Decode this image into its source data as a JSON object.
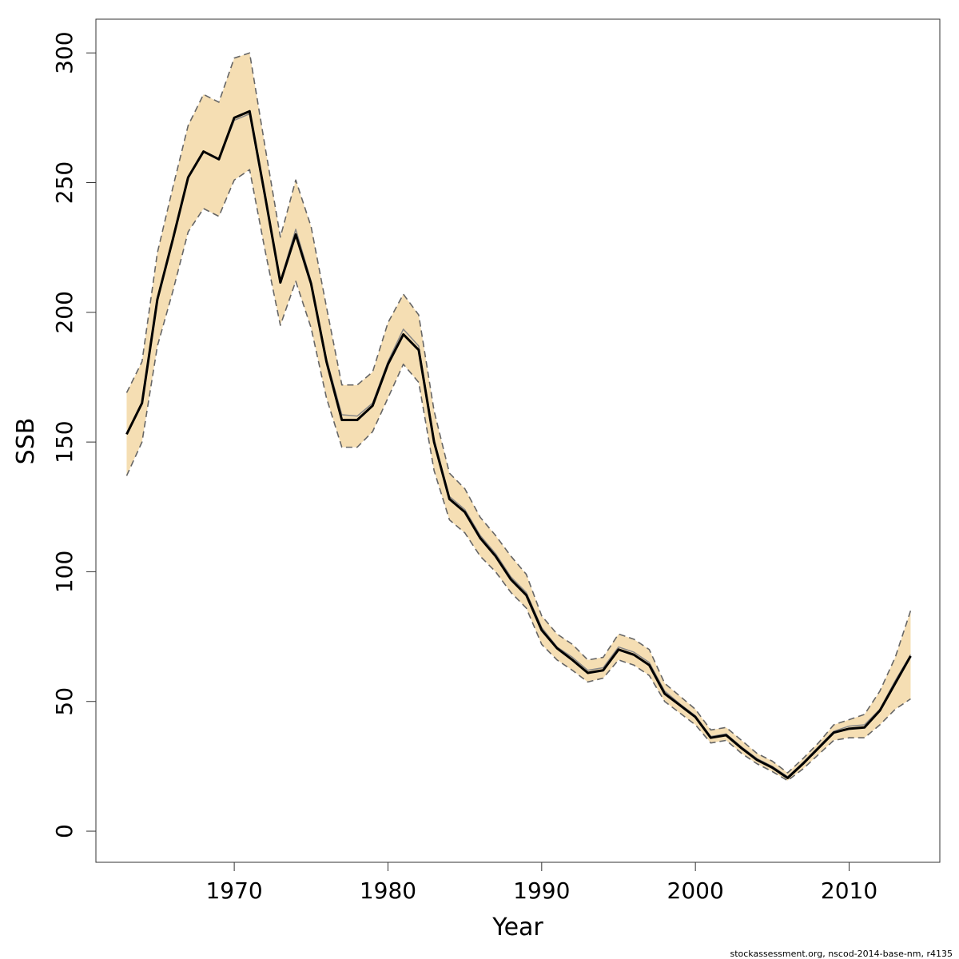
{
  "chart_data": {
    "type": "area",
    "xlabel": "Year",
    "ylabel": "SSB",
    "xlim": [
      1961.0,
      2015.9
    ],
    "ylim": [
      -12,
      313
    ],
    "x_ticks": [
      1970,
      1980,
      1990,
      2000,
      2010
    ],
    "y_ticks": [
      0,
      50,
      100,
      150,
      200,
      250,
      300
    ],
    "grid": false,
    "legend": "none",
    "x": [
      1963,
      1964,
      1965,
      1966,
      1967,
      1968,
      1969,
      1970,
      1971,
      1972,
      1973,
      1974,
      1975,
      1976,
      1977,
      1978,
      1979,
      1980,
      1981,
      1982,
      1983,
      1984,
      1985,
      1986,
      1987,
      1988,
      1989,
      1990,
      1991,
      1992,
      1993,
      1994,
      1995,
      1996,
      1997,
      1998,
      1999,
      2000,
      2001,
      2002,
      2003,
      2004,
      2005,
      2006,
      2007,
      2008,
      2009,
      2010,
      2011,
      2012,
      2013,
      2014
    ],
    "series": [
      {
        "role": "estimate",
        "values": [
          153,
          165,
          205,
          228,
          252,
          262,
          259,
          275,
          277.5,
          245,
          211.5,
          230,
          211,
          181,
          158.5,
          158.5,
          164,
          180,
          191.5,
          185.5,
          150,
          128,
          123,
          113,
          106,
          97,
          91,
          77.5,
          70.5,
          66,
          61,
          62,
          70,
          68,
          64,
          53,
          48.5,
          44,
          36,
          37,
          32,
          27.5,
          24.5,
          20.5,
          26,
          32,
          38,
          39.5,
          40,
          46.5,
          57,
          67.5
        ]
      },
      {
        "role": "upper-bound",
        "values": [
          169,
          181,
          223,
          248,
          272,
          284,
          281,
          298,
          300,
          264,
          229,
          251,
          233,
          202,
          172,
          172,
          177,
          196,
          207,
          199,
          162,
          138,
          132,
          121,
          114,
          106,
          99,
          83,
          76,
          72,
          66,
          67,
          76,
          74,
          70,
          57,
          52,
          47,
          39,
          40,
          35,
          30,
          27,
          22.5,
          28,
          34,
          41,
          43,
          45,
          54,
          67,
          85
        ]
      },
      {
        "role": "lower-bound",
        "values": [
          137,
          150,
          187,
          208,
          231,
          240,
          237,
          251,
          255,
          224,
          195,
          212,
          194,
          167,
          148,
          148,
          154,
          167,
          180,
          173,
          139,
          120,
          115,
          106,
          100,
          92,
          86,
          72,
          66,
          62,
          57.5,
          59,
          66,
          64,
          60,
          50,
          45.5,
          41,
          34,
          35,
          30,
          26,
          23,
          19.5,
          24,
          29.5,
          35,
          36,
          36,
          41,
          47,
          51
        ]
      },
      {
        "role": "alternate-estimate",
        "values": [
          153,
          165,
          205,
          228,
          252,
          262,
          259,
          274,
          276.5,
          244,
          212,
          232,
          212,
          182,
          160.5,
          160,
          165,
          181,
          193.5,
          187,
          151,
          129,
          124,
          114,
          107,
          98,
          92,
          78.5,
          71,
          67,
          62,
          63,
          71,
          69,
          65,
          54,
          49,
          44.5,
          36.5,
          37.5,
          32.5,
          28,
          25,
          21,
          26.5,
          32.5,
          38.5,
          40.5,
          41,
          47,
          58,
          68
        ]
      }
    ],
    "colors": {
      "band_fill": "#F5DEB3",
      "bound_line": "#666666",
      "estimate_line": "#000000",
      "alternate_line": "#888888"
    }
  },
  "footnote": "stockassessment.org, nscod-2014-base-nm, r4135"
}
